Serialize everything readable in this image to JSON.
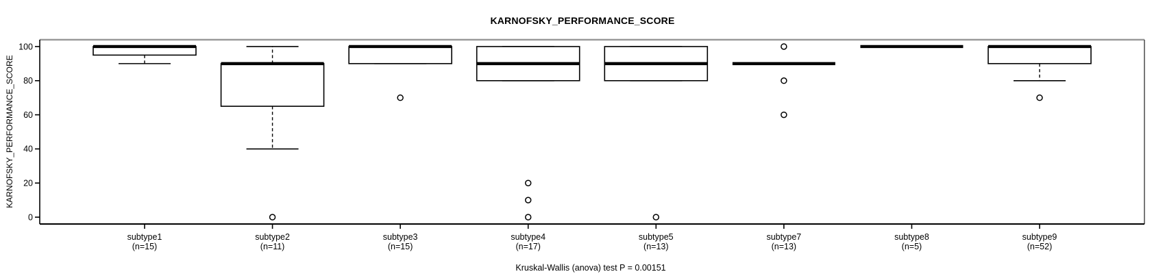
{
  "page": {
    "background": "#ffffff"
  },
  "chart_data": {
    "type": "boxplot",
    "title": "KARNOFSKY_PERFORMANCE_SCORE",
    "ylabel": "KARNOFSKY_PERFORMANCE_SCORE",
    "xlabel": "",
    "annotation": "Kruskal-Wallis (anova) test P = 0.00151",
    "ylim": [
      0,
      100
    ],
    "yticks": [
      0,
      20,
      40,
      60,
      80,
      100
    ],
    "grid": false,
    "legend": null,
    "groups": [
      {
        "label": "subtype1",
        "sublabel": "(n=15)",
        "n": 15,
        "whisker_low": 90,
        "q1": 95,
        "median": 100,
        "q3": 100,
        "whisker_high": 100,
        "outliers": []
      },
      {
        "label": "subtype2",
        "sublabel": "(n=11)",
        "n": 11,
        "whisker_low": 40,
        "q1": 65,
        "median": 90,
        "q3": 90,
        "whisker_high": 100,
        "outliers": [
          0
        ]
      },
      {
        "label": "subtype3",
        "sublabel": "(n=15)",
        "n": 15,
        "whisker_low": 90,
        "q1": 90,
        "median": 100,
        "q3": 100,
        "whisker_high": 100,
        "outliers": [
          70
        ]
      },
      {
        "label": "subtype4",
        "sublabel": "(n=17)",
        "n": 17,
        "whisker_low": 80,
        "q1": 80,
        "median": 90,
        "q3": 100,
        "whisker_high": 100,
        "outliers": [
          20,
          10,
          0
        ]
      },
      {
        "label": "subtype5",
        "sublabel": "(n=13)",
        "n": 13,
        "whisker_low": 80,
        "q1": 80,
        "median": 90,
        "q3": 100,
        "whisker_high": 100,
        "outliers": [
          0
        ]
      },
      {
        "label": "subtype7",
        "sublabel": "(n=13)",
        "n": 13,
        "whisker_low": 90,
        "q1": 90,
        "median": 90,
        "q3": 90,
        "whisker_high": 90,
        "outliers": [
          100,
          80,
          60
        ]
      },
      {
        "label": "subtype8",
        "sublabel": "(n=5)",
        "n": 5,
        "whisker_low": 100,
        "q1": 100,
        "median": 100,
        "q3": 100,
        "whisker_high": 100,
        "outliers": []
      },
      {
        "label": "subtype9",
        "sublabel": "(n=52)",
        "n": 52,
        "whisker_low": 80,
        "q1": 90,
        "median": 100,
        "q3": 100,
        "whisker_high": 100,
        "outliers": [
          70
        ]
      }
    ],
    "colors": {
      "box_fill": "#ffffff",
      "stroke": "#000000",
      "frame_top": "#999999",
      "frame_right": "#555555"
    }
  }
}
